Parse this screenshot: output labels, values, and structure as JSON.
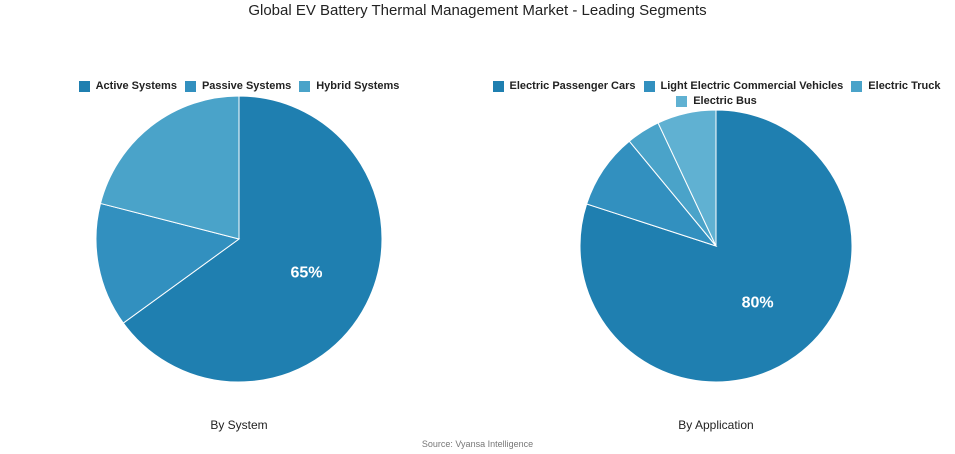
{
  "title": "Global EV Battery Thermal Management Market - Leading Segments",
  "source": "Source: Vyansa Intelligence",
  "chart_data": [
    {
      "type": "pie",
      "xlabel": "By System",
      "legend_position": "top",
      "categories": [
        "Active Systems",
        "Passive Systems",
        "Hybrid Systems"
      ],
      "values": [
        65,
        14,
        21
      ],
      "colors": [
        "#1f7fb0",
        "#3290bf",
        "#4aa3c9"
      ],
      "data_labels": [
        "65%",
        "",
        ""
      ]
    },
    {
      "type": "pie",
      "xlabel": "By Application",
      "legend_position": "top",
      "categories": [
        "Electric Passenger Cars",
        "Light Electric Commercial Vehicles",
        "Electric Truck",
        "Electric Bus"
      ],
      "values": [
        80,
        9,
        4,
        7
      ],
      "colors": [
        "#1f7fb0",
        "#3290bf",
        "#4aa3c9",
        "#60b1d2"
      ],
      "data_labels": [
        "80%",
        "",
        "",
        ""
      ]
    }
  ]
}
